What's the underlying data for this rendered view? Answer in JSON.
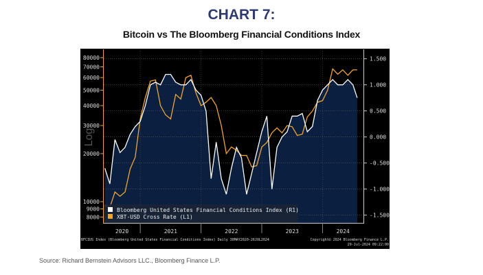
{
  "header": {
    "title": "CHART 7:",
    "subtitle": "Bitcoin vs The Bloomberg Financial Conditions Index"
  },
  "source": "Source: Richard Bernstein Advisors LLC., Bloomberg Finance L.P.",
  "chart_data": {
    "type": "line",
    "title": "Bitcoin vs The Bloomberg Financial Conditions Index",
    "x": [
      "2020-06",
      "2020-07",
      "2020-08",
      "2020-09",
      "2020-10",
      "2020-11",
      "2020-12",
      "2021-01",
      "2021-02",
      "2021-03",
      "2021-04",
      "2021-05",
      "2021-06",
      "2021-07",
      "2021-08",
      "2021-09",
      "2021-10",
      "2021-11",
      "2021-12",
      "2022-01",
      "2022-02",
      "2022-03",
      "2022-04",
      "2022-05",
      "2022-06",
      "2022-07",
      "2022-08",
      "2022-09",
      "2022-10",
      "2022-11",
      "2022-12",
      "2023-01",
      "2023-02",
      "2023-03",
      "2023-04",
      "2023-05",
      "2023-06",
      "2023-07",
      "2023-08",
      "2023-09",
      "2023-10",
      "2023-11",
      "2023-12",
      "2024-01",
      "2024-02",
      "2024-03",
      "2024-04",
      "2024-05",
      "2024-06",
      "2024-07",
      "2024-07-26"
    ],
    "series": [
      {
        "name": "Bloomberg United States Financial Conditions Index  (R1)",
        "axis": "right",
        "color": "#ffffff",
        "values": [
          -0.6,
          -0.9,
          -0.05,
          -0.3,
          -0.2,
          0.05,
          0.2,
          0.3,
          0.6,
          1.0,
          1.05,
          1.0,
          1.2,
          1.2,
          1.05,
          1.0,
          1.0,
          1.1,
          0.9,
          0.8,
          0.5,
          -0.8,
          -0.1,
          -0.8,
          -1.1,
          -0.6,
          -0.2,
          -0.4,
          -1.1,
          -0.7,
          -0.3,
          0.1,
          0.4,
          -1.0,
          -0.2,
          0.0,
          0.1,
          0.4,
          0.4,
          0.45,
          0.1,
          0.2,
          0.7,
          0.9,
          1.0,
          1.1,
          1.0,
          1.0,
          1.1,
          1.0,
          0.75
        ]
      },
      {
        "name": "XBT-USD Cross Rate  (L1)",
        "axis": "left",
        "color": "#f5a623",
        "values": [
          9500,
          9200,
          11500,
          10800,
          11500,
          16000,
          19000,
          33000,
          45000,
          57000,
          58000,
          40000,
          35000,
          33000,
          47000,
          44000,
          60000,
          62000,
          48000,
          40000,
          42000,
          45000,
          40000,
          30000,
          20000,
          22000,
          21000,
          19500,
          19500,
          16500,
          16800,
          22000,
          23500,
          27000,
          29000,
          27000,
          30000,
          29500,
          26000,
          26500,
          34000,
          37000,
          42000,
          43000,
          50000,
          68000,
          63000,
          67000,
          62000,
          67000,
          67000
        ]
      }
    ],
    "left_axis": {
      "label": "Log",
      "scale": "log",
      "ticks": [
        "80000",
        "70000",
        "60000",
        "50000",
        "40000",
        "30000",
        "20000",
        "10000",
        "9000",
        "8000"
      ],
      "tick_values": [
        80000,
        70000,
        60000,
        50000,
        40000,
        30000,
        20000,
        10000,
        9000,
        8000
      ]
    },
    "right_axis": {
      "ticks": [
        "1.500",
        "1.000",
        "0.500",
        "0.000",
        "-0.500",
        "-1.000",
        "-1.500"
      ],
      "tick_values": [
        1.5,
        1.0,
        0.5,
        0.0,
        -0.5,
        -1.0,
        -1.5
      ],
      "range": [
        -1.6,
        1.65
      ]
    },
    "x_ticks": [
      "2020",
      "2021",
      "2022",
      "2023",
      "2024"
    ],
    "legend": {
      "placement": "bottom-left",
      "entries": [
        "Bloomberg United States Financial Conditions Index  (R1)",
        "XBT-USD Cross Rate  (L1)"
      ]
    },
    "footer_left": "BFCIUS Index (Bloomberg United States Financial Conditions Index)  Daily 30MAY2020-26JUL2024",
    "footer_right": "Copyright© 2024 Bloomberg Finance L.P.",
    "footer_date": "29-Jul-2024 09:22:00",
    "grid": true
  }
}
